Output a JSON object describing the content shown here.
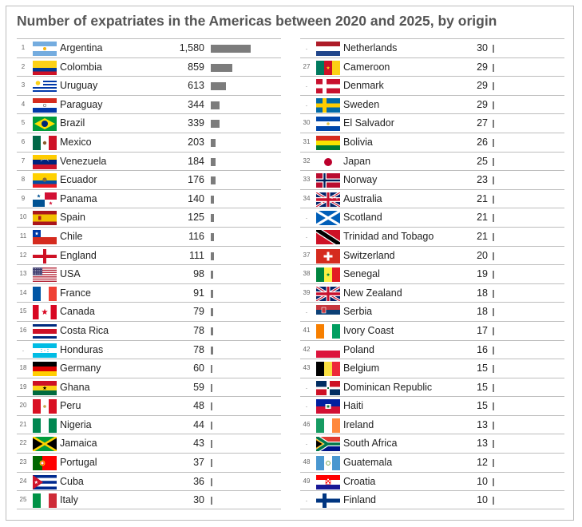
{
  "title": "Number of expatriates in the Americas between 2020 and 2025, by origin",
  "chart_data": {
    "type": "bar",
    "title": "Number of expatriates in the Americas between 2020 and 2025, by origin",
    "orientation": "horizontal",
    "categories": [
      "Argentina",
      "Colombia",
      "Uruguay",
      "Paraguay",
      "Brazil",
      "Mexico",
      "Venezuela",
      "Ecuador",
      "Panama",
      "Spain",
      "Chile",
      "England",
      "USA",
      "France",
      "Canada",
      "Costa Rica",
      "Honduras",
      "Germany",
      "Ghana",
      "Peru",
      "Nigeria",
      "Jamaica",
      "Portugal",
      "Cuba",
      "Italy",
      "Netherlands",
      "Cameroon",
      "Denmark",
      "Sweden",
      "El Salvador",
      "Bolivia",
      "Japan",
      "Norway",
      "Australia",
      "Scotland",
      "Trinidad and Tobago",
      "Switzerland",
      "Senegal",
      "New Zealand",
      "Serbia",
      "Ivory Coast",
      "Poland",
      "Belgium",
      "Dominican Republic",
      "Haiti",
      "Ireland",
      "South Africa",
      "Guatemala",
      "Croatia",
      "Finland"
    ],
    "ranks": [
      "1",
      "2",
      "3",
      "4",
      "5",
      "6",
      "7",
      "8",
      "9",
      "10",
      "11",
      "12",
      "13",
      "14",
      "15",
      "16",
      ".",
      "18",
      "19",
      "20",
      "21",
      "22",
      "23",
      "24",
      "25",
      ".",
      "27",
      ".",
      ".",
      "30",
      "31",
      "32",
      "33",
      "34",
      ".",
      ".",
      "37",
      "38",
      "39",
      ".",
      "41",
      "42",
      "43",
      ".",
      ".",
      "46",
      ".",
      "48",
      "49",
      "."
    ],
    "value_labels": [
      "1,580",
      "859",
      "613",
      "344",
      "339",
      "203",
      "184",
      "176",
      "140",
      "125",
      "116",
      "111",
      "98",
      "91",
      "79",
      "78",
      "78",
      "60",
      "59",
      "48",
      "44",
      "43",
      "37",
      "36",
      "30",
      "30",
      "29",
      "29",
      "29",
      "27",
      "26",
      "25",
      "23",
      "21",
      "21",
      "21",
      "20",
      "19",
      "18",
      "18",
      "17",
      "16",
      "15",
      "15",
      "15",
      "13",
      "13",
      "12",
      "10",
      "10"
    ],
    "values": [
      1580,
      859,
      613,
      344,
      339,
      203,
      184,
      176,
      140,
      125,
      116,
      111,
      98,
      91,
      79,
      78,
      78,
      60,
      59,
      48,
      44,
      43,
      37,
      36,
      30,
      30,
      29,
      29,
      29,
      27,
      26,
      25,
      23,
      21,
      21,
      21,
      20,
      19,
      18,
      18,
      17,
      16,
      15,
      15,
      15,
      13,
      13,
      12,
      10,
      10
    ],
    "flags": [
      "ar",
      "co",
      "uy",
      "py",
      "br",
      "mx",
      "ve",
      "ec",
      "pa",
      "es",
      "cl",
      "en",
      "us",
      "fr",
      "ca",
      "cr",
      "hn",
      "de",
      "gh",
      "pe",
      "ng",
      "jm",
      "pt",
      "cu",
      "it",
      "nl",
      "cm",
      "dk",
      "se",
      "sv",
      "bo",
      "jp",
      "no",
      "au",
      "sc",
      "tt",
      "ch",
      "sn",
      "nz",
      "rs",
      "ci",
      "pl",
      "be",
      "do",
      "ht",
      "ie",
      "za",
      "gt",
      "hr",
      "fi"
    ],
    "xlim": [
      0,
      1580
    ],
    "grid": false,
    "legend": "none"
  }
}
